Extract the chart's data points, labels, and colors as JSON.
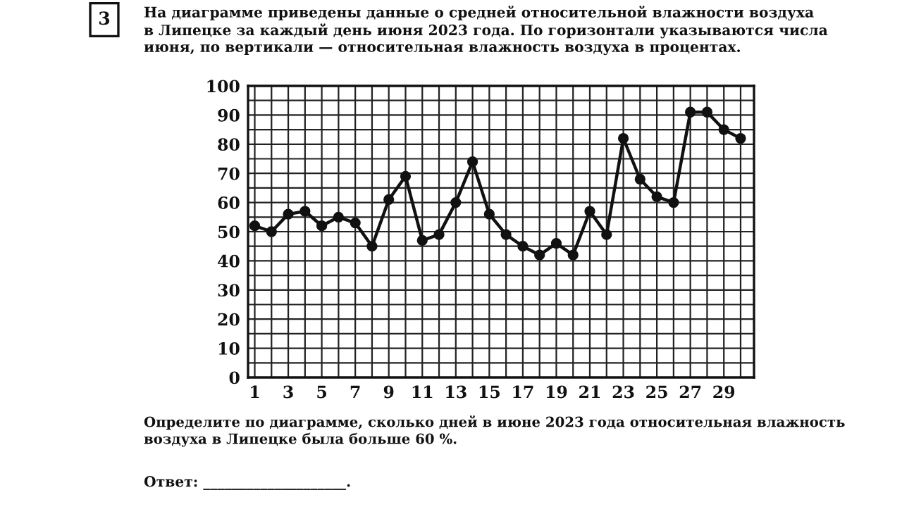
{
  "chart_data": {
    "type": "line",
    "title": "На диаграмме приведены данные о средней относительной влажности воздуха\nв Липецке за каждый день июня 2023 года. По горизонтали указываются числа\nиюня, по вертикали — относительная влажность воздуха в процентах.",
    "annotations": [
      "3",
      "Определите по диаграмме, сколько дней в июне 2023 года относительная влажность\nвоздуха в Липецке была больше 60 %.",
      "Ответ: ____________________."
    ],
    "x": [
      1,
      2,
      3,
      4,
      5,
      6,
      7,
      8,
      9,
      10,
      11,
      12,
      13,
      14,
      15,
      16,
      17,
      18,
      19,
      20,
      21,
      22,
      23,
      24,
      25,
      26,
      27,
      28,
      29,
      30
    ],
    "series": [
      {
        "color": "#111111",
        "values": [
          52,
          50,
          56,
          57,
          52,
          55,
          53,
          45,
          61,
          69,
          47,
          49,
          60,
          74,
          56,
          49,
          45,
          42,
          46,
          42,
          57,
          49,
          82,
          68,
          62,
          60,
          91,
          91,
          85,
          82
        ]
      }
    ],
    "xlim": [
      0.6,
      30.8
    ],
    "xticks": [
      1,
      {
        "value": 2,
        "label": null
      },
      3,
      {
        "value": 4,
        "label": null
      },
      5,
      {
        "value": 6,
        "label": null
      },
      7,
      {
        "value": 8,
        "label": null
      },
      9,
      {
        "value": 10,
        "label": null
      },
      11,
      {
        "value": 12,
        "label": null
      },
      13,
      {
        "value": 14,
        "label": null
      },
      15,
      {
        "value": 16,
        "label": null
      },
      17,
      {
        "value": 18,
        "label": null
      },
      19,
      {
        "value": 20,
        "label": null
      },
      21,
      {
        "value": 22,
        "label": null
      },
      23,
      {
        "value": 24,
        "label": null
      },
      25,
      {
        "value": 26,
        "label": null
      },
      27,
      {
        "value": 28,
        "label": null
      },
      29,
      {
        "value": 30,
        "label": null
      }
    ],
    "ylim": [
      0,
      100
    ],
    "yticks": [
      0,
      {
        "value": 5,
        "label": null
      },
      10,
      {
        "value": 15,
        "label": null
      },
      20,
      {
        "value": 25,
        "label": null
      },
      30,
      {
        "value": 35,
        "label": null
      },
      40,
      {
        "value": 45,
        "label": null
      },
      50,
      {
        "value": 55,
        "label": null
      },
      60,
      {
        "value": 65,
        "label": null
      },
      70,
      {
        "value": 75,
        "label": null
      },
      80,
      {
        "value": 85,
        "label": null
      },
      90,
      {
        "value": 95,
        "label": null
      },
      100
    ],
    "grid": true,
    "marker": "circle",
    "line_style": "solid"
  }
}
